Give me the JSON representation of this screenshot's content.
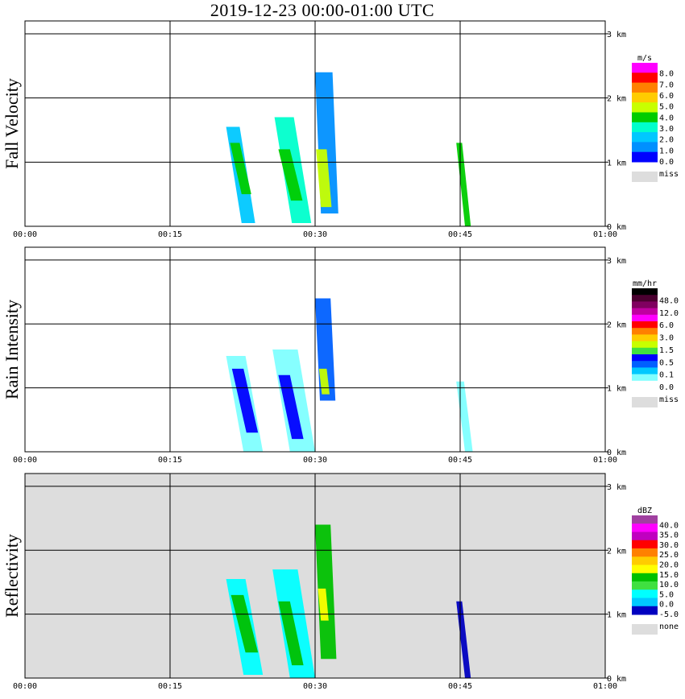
{
  "title": "2019-12-23   00:00-01:00 UTC",
  "chart_data": [
    {
      "type": "heatmap",
      "ylabel": "Fall Velocity",
      "x_ticks": [
        "00:00",
        "00:15",
        "00:30",
        "00:45",
        "01:00"
      ],
      "y_ticks": [
        "0 km",
        "1 km",
        "2 km",
        "3 km"
      ],
      "xlim": [
        "00:00",
        "01:00"
      ],
      "ylim_km": [
        0,
        3.2
      ],
      "grid": true,
      "background": "#ffffff",
      "legend": {
        "unit": "m/s",
        "colors": [
          "#ff00ff",
          "#ff0000",
          "#ff8000",
          "#ffcc00",
          "#c8ff00",
          "#00cc00",
          "#00ffcc",
          "#00c8ff",
          "#0090ff",
          "#0000ff"
        ],
        "labels": [
          "8.0",
          "7.0",
          "6.0",
          "5.0",
          "4.0",
          "3.0",
          "2.0",
          "1.0",
          "0.0"
        ],
        "missing_label": "miss",
        "missing_color": "#dddddd"
      },
      "echoes": [
        {
          "t0": 20.8,
          "t1": 22.2,
          "z0": 0.05,
          "z1": 1.55,
          "drift": 1.6,
          "color": "#00c8ff"
        },
        {
          "t0": 21.2,
          "t1": 22.2,
          "z0": 0.5,
          "z1": 1.3,
          "drift": 1.2,
          "color": "#00cc00"
        },
        {
          "t0": 25.8,
          "t1": 27.8,
          "z0": 0.05,
          "z1": 1.7,
          "drift": 1.8,
          "color": "#00ffcc"
        },
        {
          "t0": 26.2,
          "t1": 27.4,
          "z0": 0.4,
          "z1": 1.2,
          "drift": 1.3,
          "color": "#00cc00"
        },
        {
          "t0": 30.0,
          "t1": 31.8,
          "z0": 0.2,
          "z1": 2.4,
          "drift": 0.6,
          "color": "#0090ff"
        },
        {
          "t0": 30.1,
          "t1": 31.2,
          "z0": 0.3,
          "z1": 1.2,
          "drift": 0.5,
          "color": "#c8ff00"
        },
        {
          "t0": 44.6,
          "t1": 45.2,
          "z0": 0.0,
          "z1": 1.3,
          "drift": 0.9,
          "color": "#00cc00"
        }
      ]
    },
    {
      "type": "heatmap",
      "ylabel": "Rain Intensity",
      "x_ticks": [
        "00:00",
        "00:15",
        "00:30",
        "00:45",
        "01:00"
      ],
      "y_ticks": [
        "0 km",
        "1 km",
        "2 km",
        "3 km"
      ],
      "xlim": [
        "00:00",
        "01:00"
      ],
      "ylim_km": [
        0,
        3.2
      ],
      "grid": true,
      "background": "#ffffff",
      "legend": {
        "unit": "mm/hr",
        "colors": [
          "#000000",
          "#4b0030",
          "#800060",
          "#c000a0",
          "#ff00ff",
          "#ff0000",
          "#ff8000",
          "#ffcc00",
          "#c8ff00",
          "#40e040",
          "#0000ff",
          "#0060ff",
          "#00c8ff",
          "#80ffff",
          "#ffffff"
        ],
        "labels": [
          "48.0",
          "12.0",
          "6.0",
          "3.0",
          "1.5",
          "0.5",
          "0.1",
          "0.0"
        ],
        "missing_label": "miss",
        "missing_color": "#dddddd"
      },
      "echoes": [
        {
          "t0": 20.8,
          "t1": 22.8,
          "z0": 0.0,
          "z1": 1.5,
          "drift": 1.8,
          "color": "#80ffff"
        },
        {
          "t0": 21.4,
          "t1": 22.6,
          "z0": 0.3,
          "z1": 1.3,
          "drift": 1.5,
          "color": "#0000ff"
        },
        {
          "t0": 25.6,
          "t1": 28.2,
          "z0": 0.0,
          "z1": 1.6,
          "drift": 1.8,
          "color": "#80ffff"
        },
        {
          "t0": 26.2,
          "t1": 27.4,
          "z0": 0.2,
          "z1": 1.2,
          "drift": 1.4,
          "color": "#0000ff"
        },
        {
          "t0": 30.0,
          "t1": 31.6,
          "z0": 0.8,
          "z1": 2.4,
          "drift": 0.5,
          "color": "#0060ff"
        },
        {
          "t0": 30.4,
          "t1": 31.2,
          "z0": 0.9,
          "z1": 1.3,
          "drift": 0.3,
          "color": "#c8ff00"
        },
        {
          "t0": 44.6,
          "t1": 45.4,
          "z0": 0.0,
          "z1": 1.1,
          "drift": 0.9,
          "color": "#80ffff"
        }
      ]
    },
    {
      "type": "heatmap",
      "ylabel": "Reflectivity",
      "x_ticks": [
        "00:00",
        "00:15",
        "00:30",
        "00:45",
        "01:00"
      ],
      "y_ticks": [
        "0 km",
        "1 km",
        "2 km",
        "3 km"
      ],
      "xlim": [
        "00:00",
        "01:00"
      ],
      "ylim_km": [
        0,
        3.2
      ],
      "grid": true,
      "background": "#dddddd",
      "legend": {
        "unit": "dBZ",
        "colors": [
          "#a040a0",
          "#ff00ff",
          "#c000c0",
          "#ff0000",
          "#ff8000",
          "#ffcc00",
          "#ffff00",
          "#00c000",
          "#40e040",
          "#00ffff",
          "#00c8ff",
          "#0000c0"
        ],
        "labels": [
          "40.0",
          "35.0",
          "30.0",
          "25.0",
          "20.0",
          "15.0",
          "10.0",
          "5.0",
          "0.0",
          "-5.0"
        ],
        "missing_label": "none",
        "missing_color": "#dddddd"
      },
      "echoes": [
        {
          "t0": 20.8,
          "t1": 22.8,
          "z0": 0.05,
          "z1": 1.55,
          "drift": 1.8,
          "color": "#00ffff"
        },
        {
          "t0": 21.3,
          "t1": 22.6,
          "z0": 0.4,
          "z1": 1.3,
          "drift": 1.5,
          "color": "#00c000"
        },
        {
          "t0": 25.6,
          "t1": 28.2,
          "z0": 0.0,
          "z1": 1.7,
          "drift": 1.8,
          "color": "#00ffff"
        },
        {
          "t0": 26.2,
          "t1": 27.4,
          "z0": 0.2,
          "z1": 1.2,
          "drift": 1.4,
          "color": "#00c000"
        },
        {
          "t0": 30.0,
          "t1": 31.6,
          "z0": 0.3,
          "z1": 2.4,
          "drift": 0.6,
          "color": "#00c000"
        },
        {
          "t0": 30.3,
          "t1": 31.1,
          "z0": 0.9,
          "z1": 1.4,
          "drift": 0.3,
          "color": "#ffff00"
        },
        {
          "t0": 44.6,
          "t1": 45.2,
          "z0": 0.0,
          "z1": 1.2,
          "drift": 0.9,
          "color": "#0000c0"
        }
      ]
    }
  ]
}
